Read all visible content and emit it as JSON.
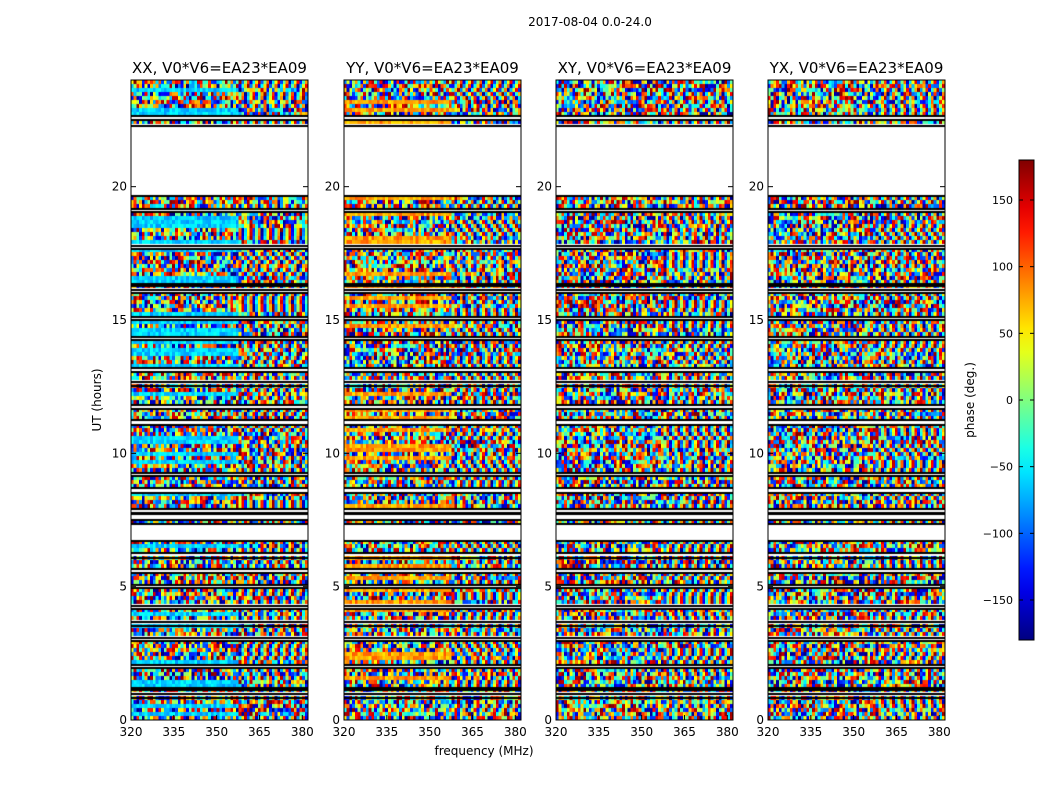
{
  "figure": {
    "suptitle": "2017-08-04 0.0-24.0"
  },
  "chart_data": {
    "type": "heatmap",
    "xlabel": "frequency (MHz)",
    "ylabel": "UT (hours)",
    "xlim": [
      320,
      382
    ],
    "ylim": [
      0,
      24
    ],
    "xticks": [
      320,
      335,
      350,
      365,
      380
    ],
    "yticks": [
      0,
      5,
      10,
      15,
      20
    ],
    "panels": [
      {
        "title": "XX, V0*V6=EA23*EA09",
        "bias": "cyan"
      },
      {
        "title": "YY, V0*V6=EA23*EA09",
        "bias": "orange"
      },
      {
        "title": "XY, V0*V6=EA23*EA09",
        "bias": "none"
      },
      {
        "title": "YX, V0*V6=EA23*EA09",
        "bias": "none"
      }
    ],
    "flagged_bands_hours": [
      [
        0.85,
        1.0
      ],
      [
        1.15,
        1.25
      ],
      [
        2.0,
        2.1
      ],
      [
        3.0,
        3.1
      ],
      [
        3.55,
        3.7
      ],
      [
        4.2,
        4.3
      ],
      [
        5.0,
        5.1
      ],
      [
        5.55,
        5.7
      ],
      [
        6.1,
        6.3
      ],
      [
        6.75,
        7.4
      ],
      [
        7.55,
        7.75
      ],
      [
        7.8,
        7.95
      ],
      [
        8.55,
        8.75
      ],
      [
        9.2,
        9.3
      ],
      [
        11.1,
        11.3
      ],
      [
        11.7,
        11.85
      ],
      [
        12.55,
        12.7
      ],
      [
        13.1,
        13.25
      ],
      [
        14.3,
        14.4
      ],
      [
        15.05,
        15.15
      ],
      [
        16.05,
        16.15
      ],
      [
        16.3,
        16.4
      ],
      [
        17.7,
        17.8
      ],
      [
        19.1,
        19.2
      ],
      [
        19.7,
        22.3
      ],
      [
        22.55,
        22.7
      ]
    ],
    "colorbar": {
      "label": "phase (deg.)",
      "range": [
        -180,
        180
      ],
      "ticks": [
        -150,
        -100,
        -50,
        0,
        50,
        100,
        150
      ],
      "tick_labels": [
        "−150",
        "−100",
        "−50",
        "0",
        "50",
        "100",
        "150"
      ],
      "colormap": "jet"
    }
  }
}
